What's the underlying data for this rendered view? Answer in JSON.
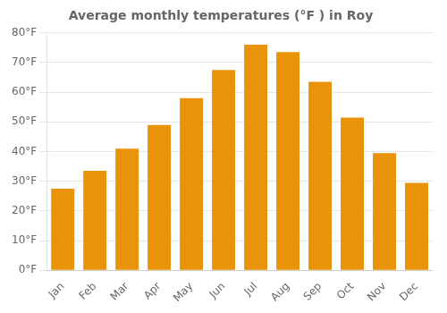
{
  "chart_data": {
    "type": "bar",
    "title": "Average monthly temperatures (°F ) in Roy",
    "categories": [
      "Jan",
      "Feb",
      "Mar",
      "Apr",
      "May",
      "Jun",
      "Jul",
      "Aug",
      "Sep",
      "Oct",
      "Nov",
      "Dec"
    ],
    "values": [
      27.5,
      33.5,
      41.0,
      49.0,
      58.0,
      67.5,
      76.0,
      73.5,
      63.5,
      51.5,
      39.5,
      29.5
    ],
    "color": "#E8930A",
    "ylim": [
      0,
      80
    ],
    "yticks": [
      {
        "value": 0,
        "label": "0°F"
      },
      {
        "value": 10,
        "label": "10°F"
      },
      {
        "value": 20,
        "label": "20°F"
      },
      {
        "value": 30,
        "label": "30°F"
      },
      {
        "value": 40,
        "label": "40°F"
      },
      {
        "value": 50,
        "label": "50°F"
      },
      {
        "value": 60,
        "label": "60°F"
      },
      {
        "value": 70,
        "label": "70°F"
      },
      {
        "value": 80,
        "label": "80°F"
      }
    ],
    "grid": true
  }
}
